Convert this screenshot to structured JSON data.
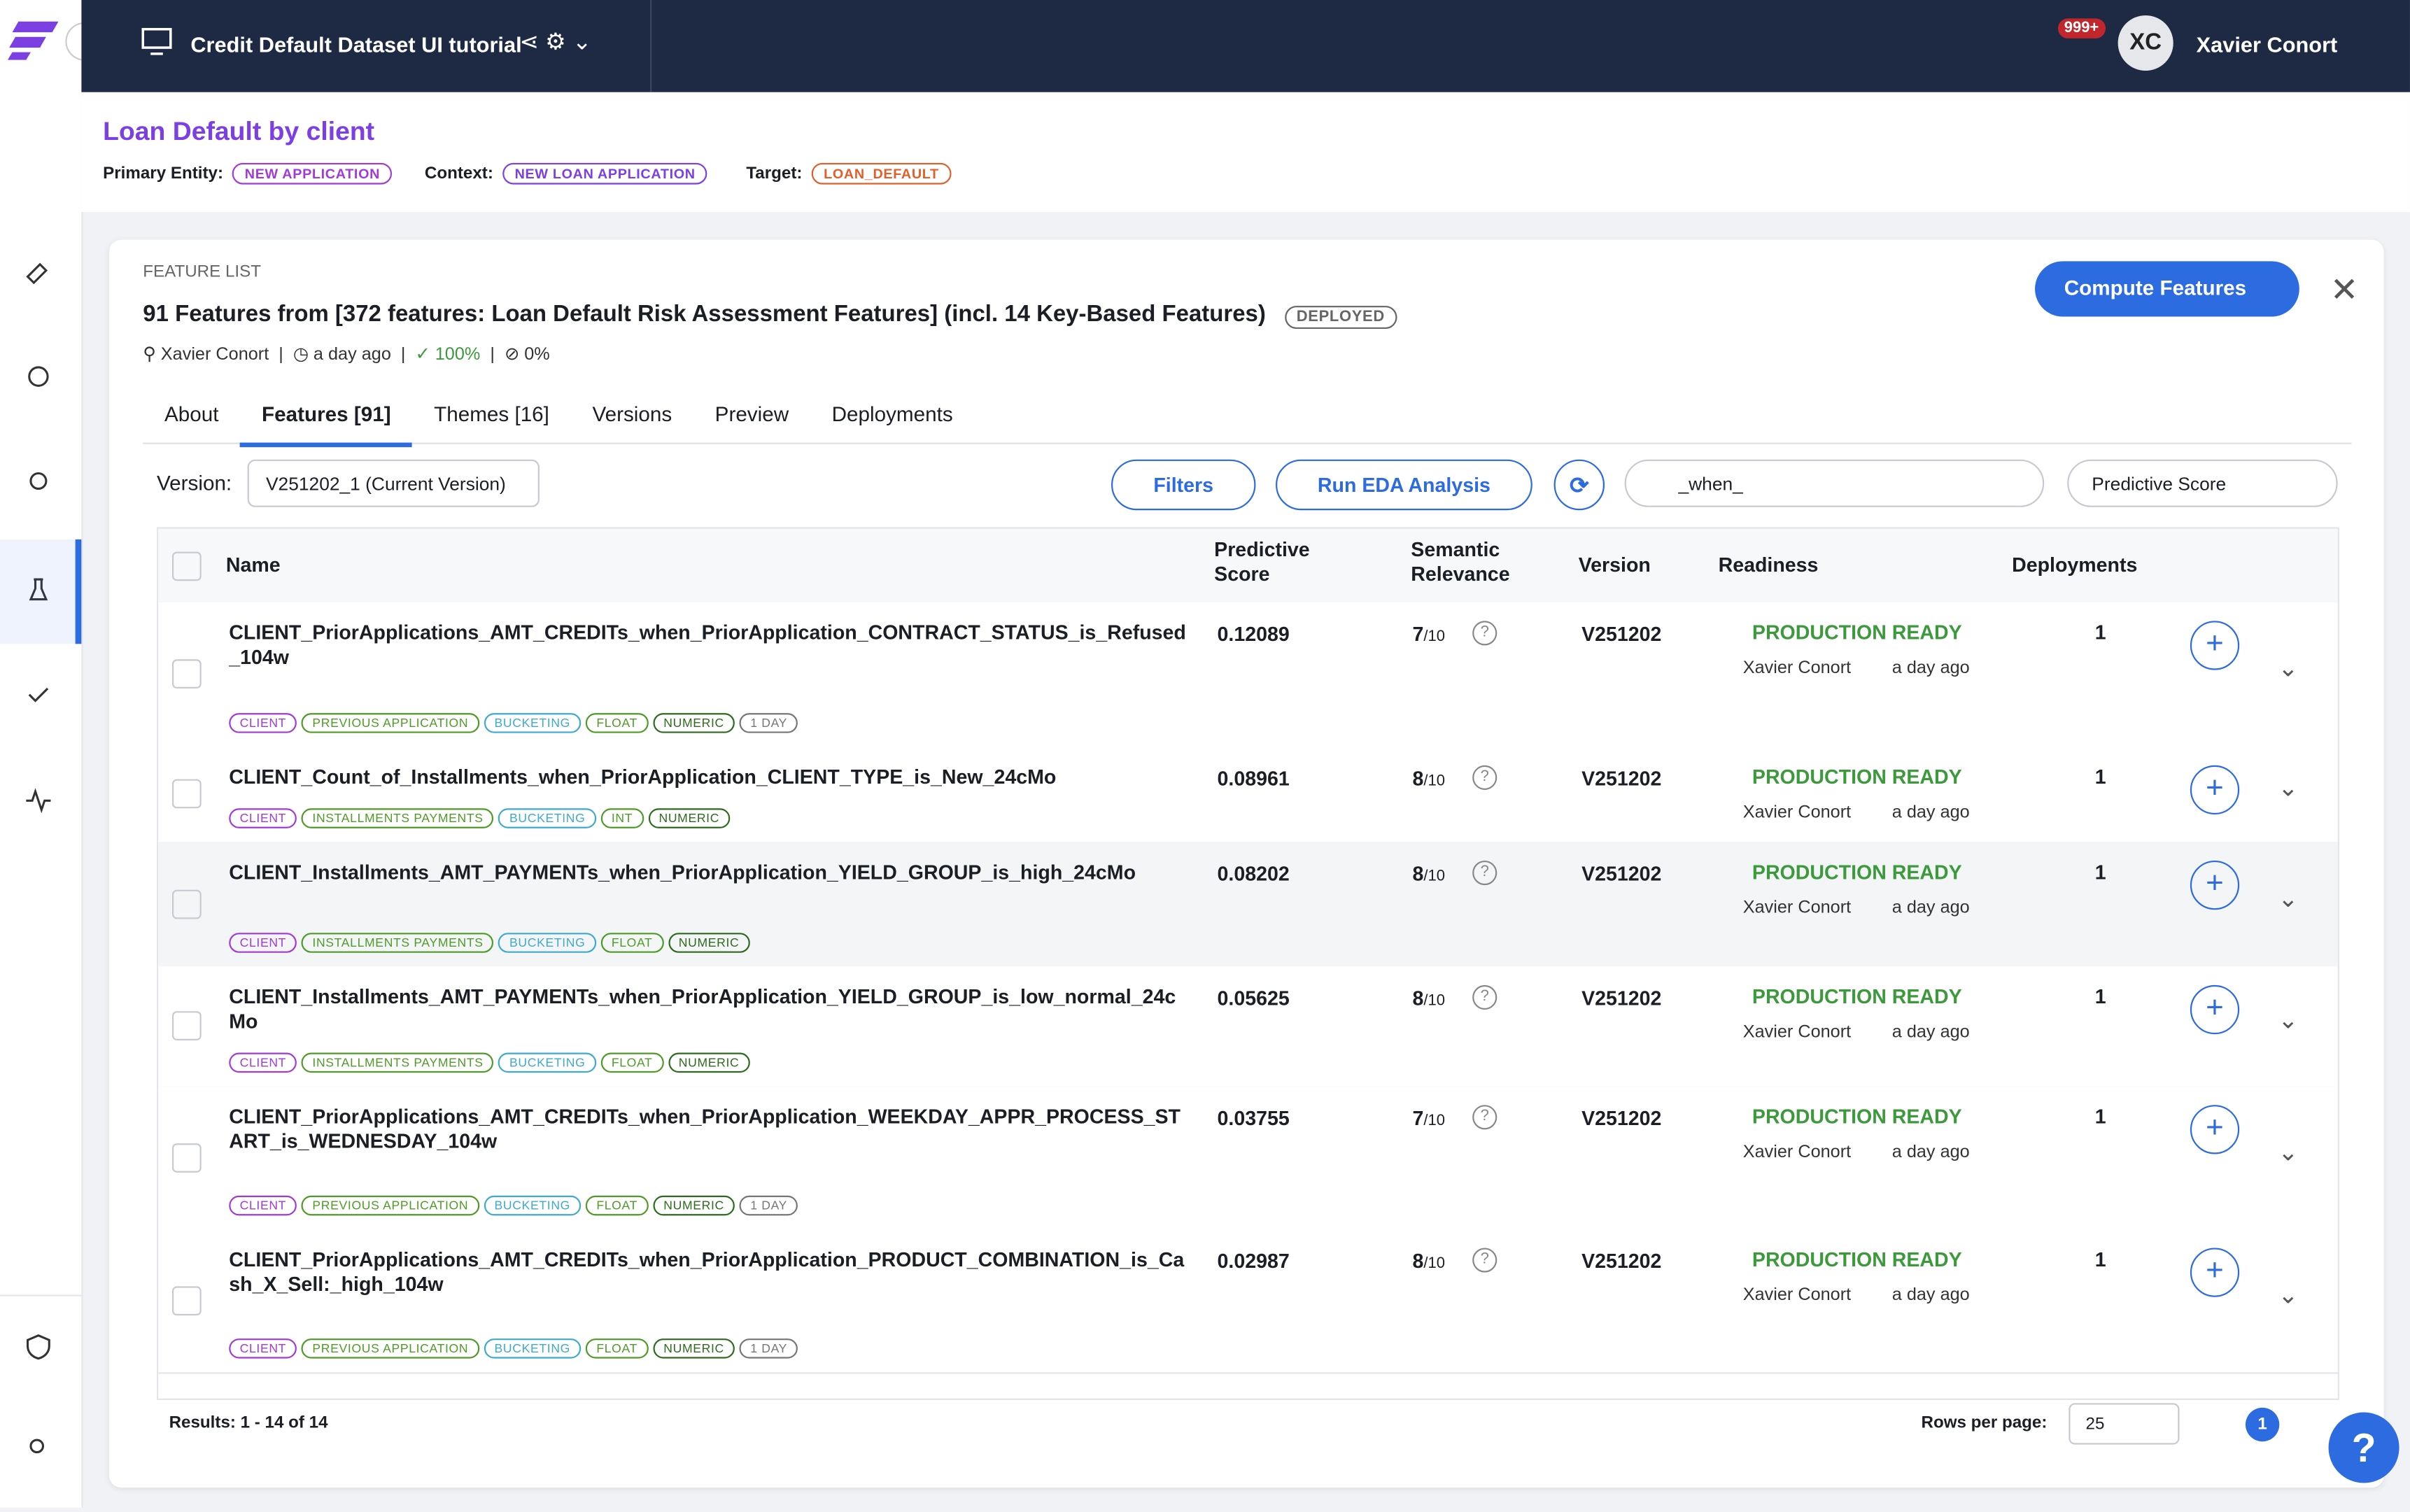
{
  "header": {
    "project": "Credit Default Dataset UI tutorial",
    "notifications": "999+",
    "user_initials": "XC",
    "user_name": "Xavier Conort"
  },
  "context": {
    "title": "Loan Default by client",
    "primary_entity_label": "Primary Entity:",
    "primary_entity": "NEW APPLICATION",
    "context_label": "Context:",
    "context": "NEW LOAN APPLICATION",
    "target_label": "Target:",
    "target": "LOAN_DEFAULT"
  },
  "feature_list": {
    "section": "FEATURE LIST",
    "title": "91 Features from [372 features: Loan Default Risk Assessment Features] (incl. 14 Key-Based Features)",
    "status": "DEPLOYED",
    "owner": "Xavier Conort",
    "updated": "a day ago",
    "readiness": "100%",
    "other": "0%",
    "compute_button": "Compute Features"
  },
  "tabs": [
    "About",
    "Features [91]",
    "Themes [16]",
    "Versions",
    "Preview",
    "Deployments"
  ],
  "toolbar": {
    "version_label": "Version:",
    "version": "V251202_1 (Current Version)",
    "filters": "Filters",
    "run_eda": "Run EDA Analysis",
    "search": "_when_",
    "sort": "Predictive Score"
  },
  "table": {
    "columns": [
      "Name",
      "Predictive Score",
      "Semantic Relevance",
      "Version",
      "Readiness",
      "Deployments"
    ],
    "rows": [
      {
        "name": "CLIENT_PriorApplications_AMT_CREDITs_when_PriorApplication_CONTRACT_STATUS_is_Refused_104w",
        "tags": [
          "CLIENT",
          "PREVIOUS APPLICATION",
          "BUCKETING",
          "FLOAT",
          "NUMERIC",
          "1 DAY"
        ],
        "score": "0.12089",
        "relevance": "7",
        "relevance_scale": "/10",
        "version": "V251202",
        "readiness": "PRODUCTION READY",
        "owner": "Xavier Conort",
        "updated": "a day ago",
        "deployments": "1"
      },
      {
        "name": "CLIENT_Count_of_Installments_when_PriorApplication_CLIENT_TYPE_is_New_24cMo",
        "tags": [
          "CLIENT",
          "INSTALLMENTS PAYMENTS",
          "BUCKETING",
          "INT",
          "NUMERIC"
        ],
        "score": "0.08961",
        "relevance": "8",
        "relevance_scale": "/10",
        "version": "V251202",
        "readiness": "PRODUCTION READY",
        "owner": "Xavier Conort",
        "updated": "a day ago",
        "deployments": "1"
      },
      {
        "name": "CLIENT_Installments_AMT_PAYMENTs_when_PriorApplication_YIELD_GROUP_is_high_24cMo",
        "tags": [
          "CLIENT",
          "INSTALLMENTS PAYMENTS",
          "BUCKETING",
          "FLOAT",
          "NUMERIC"
        ],
        "score": "0.08202",
        "relevance": "8",
        "relevance_scale": "/10",
        "version": "V251202",
        "readiness": "PRODUCTION READY",
        "owner": "Xavier Conort",
        "updated": "a day ago",
        "deployments": "1"
      },
      {
        "name": "CLIENT_Installments_AMT_PAYMENTs_when_PriorApplication_YIELD_GROUP_is_low_normal_24cMo",
        "tags": [
          "CLIENT",
          "INSTALLMENTS PAYMENTS",
          "BUCKETING",
          "FLOAT",
          "NUMERIC"
        ],
        "score": "0.05625",
        "relevance": "8",
        "relevance_scale": "/10",
        "version": "V251202",
        "readiness": "PRODUCTION READY",
        "owner": "Xavier Conort",
        "updated": "a day ago",
        "deployments": "1"
      },
      {
        "name": "CLIENT_PriorApplications_AMT_CREDITs_when_PriorApplication_WEEKDAY_APPR_PROCESS_START_is_WEDNESDAY_104w",
        "tags": [
          "CLIENT",
          "PREVIOUS APPLICATION",
          "BUCKETING",
          "FLOAT",
          "NUMERIC",
          "1 DAY"
        ],
        "score": "0.03755",
        "relevance": "7",
        "relevance_scale": "/10",
        "version": "V251202",
        "readiness": "PRODUCTION READY",
        "owner": "Xavier Conort",
        "updated": "a day ago",
        "deployments": "1"
      },
      {
        "name": "CLIENT_PriorApplications_AMT_CREDITs_when_PriorApplication_PRODUCT_COMBINATION_is_Cash_X_Sell:_high_104w",
        "tags": [
          "CLIENT",
          "PREVIOUS APPLICATION",
          "BUCKETING",
          "FLOAT",
          "NUMERIC",
          "1 DAY"
        ],
        "score": "0.02987",
        "relevance": "8",
        "relevance_scale": "/10",
        "version": "V251202",
        "readiness": "PRODUCTION READY",
        "owner": "Xavier Conort",
        "updated": "a day ago",
        "deployments": "1"
      }
    ]
  },
  "footer": {
    "results": "Results: 1 - 14 of 14",
    "rows_label": "Rows per page:",
    "rows_per_page": "25",
    "page": "1"
  }
}
